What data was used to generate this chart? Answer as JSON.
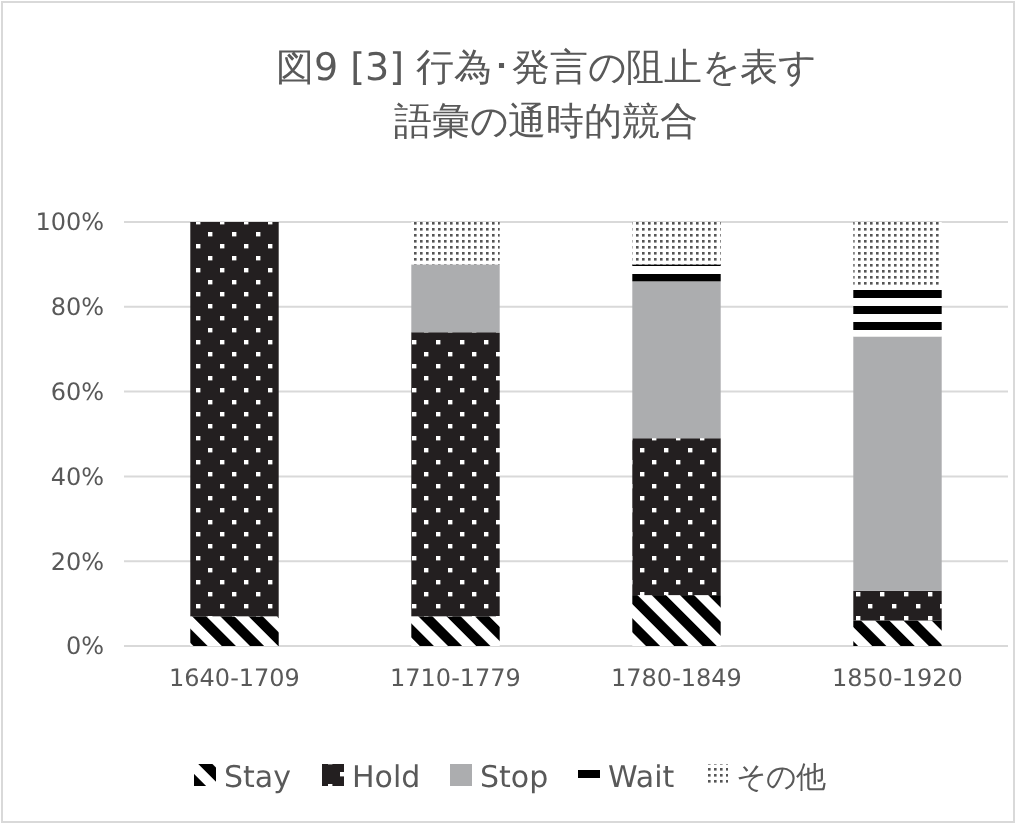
{
  "chart_data": {
    "type": "bar",
    "title": "図9 [3] 行為･発言の阻止を表す語彙の通時的競合",
    "stacked": true,
    "categories": [
      "1640-1709",
      "1710-1779",
      "1780-1849",
      "1850-1920"
    ],
    "series": [
      {
        "name": "Stay",
        "color": "#000000",
        "values": [
          7,
          7,
          12,
          6
        ]
      },
      {
        "name": "Hold",
        "color": "#231f20",
        "values": [
          93,
          67,
          37,
          7
        ]
      },
      {
        "name": "Stop",
        "color": "#acadaf",
        "values": [
          0,
          16,
          37,
          60
        ]
      },
      {
        "name": "Wait",
        "color": "#000000",
        "values": [
          0,
          0,
          4,
          12
        ]
      },
      {
        "name": "その他",
        "color": "#555555",
        "values": [
          0,
          10,
          10,
          15
        ]
      }
    ],
    "ylim": [
      0,
      100
    ],
    "yticks": [
      {
        "value": 0,
        "label": "0%"
      },
      {
        "value": 20,
        "label": "20%"
      },
      {
        "value": 40,
        "label": "40%"
      },
      {
        "value": 60,
        "label": "60%"
      },
      {
        "value": 80,
        "label": "80%"
      },
      {
        "value": 100,
        "label": "100%"
      }
    ],
    "grid": "y",
    "legend": "bottom"
  }
}
